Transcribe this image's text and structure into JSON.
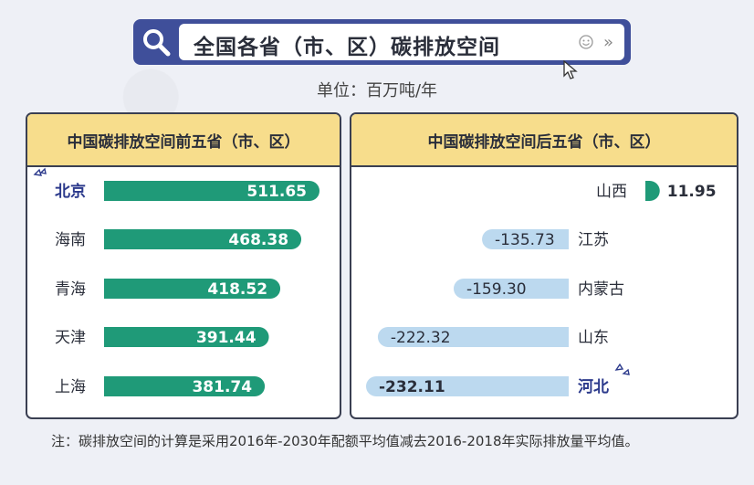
{
  "title": "全国各省（市、区）碳排放空间",
  "unit": "单位：百万吨/年",
  "note": "注：碳排放空间的计算是采用2016年-2030年配额平均值减去2016-2018年实际排放量平均值。",
  "colors": {
    "top_bar": "#1f9a78",
    "bottom_bar": "#bcd9ef",
    "header_bg": "#f7dd8c",
    "title_bar": "#3f4f9a",
    "highlight_label": "#2c3a8c"
  },
  "chart_data": [
    {
      "type": "bar",
      "orientation": "horizontal",
      "title": "中国碳排放空间前五省（市、区）",
      "categories": [
        "北京",
        "海南",
        "青海",
        "天津",
        "上海"
      ],
      "values": [
        511.65,
        468.38,
        418.52,
        391.44,
        381.74
      ],
      "value_labels": [
        "511.65",
        "468.38",
        "418.52",
        "391.44",
        "381.74"
      ],
      "highlight": "北京"
    },
    {
      "type": "bar",
      "orientation": "horizontal",
      "title": "中国碳排放空间后五省（市、区）",
      "categories": [
        "山西",
        "江苏",
        "内蒙古",
        "山东",
        "河北"
      ],
      "values": [
        11.95,
        -135.73,
        -159.3,
        -222.32,
        -232.11
      ],
      "value_labels": [
        "11.95",
        "-135.73",
        "-159.30",
        "-222.32",
        "-232.11"
      ],
      "highlight": "河北"
    }
  ]
}
